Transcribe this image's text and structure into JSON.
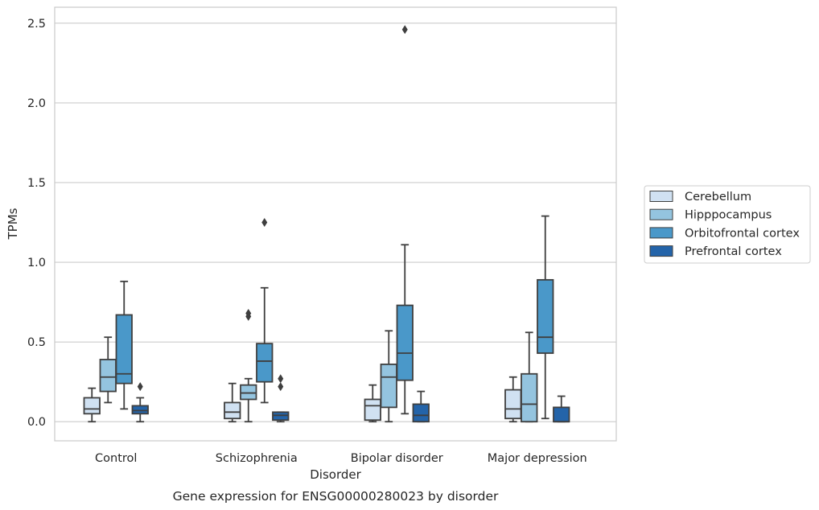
{
  "chart_data": {
    "type": "box",
    "caption": "Gene expression for ENSG00000280023 by disorder",
    "xlabel": "Disorder",
    "ylabel": "TPMs",
    "ylim": [
      -0.12,
      2.6
    ],
    "yticks": [
      "0.0",
      "0.5",
      "1.0",
      "1.5",
      "2.0",
      "2.5"
    ],
    "ytick_values": [
      0,
      0.5,
      1.0,
      1.5,
      2.0,
      2.5
    ],
    "grid": "horizontal",
    "legend_position": "right",
    "categories": [
      "Control",
      "Schizophrenia",
      "Bipolar disorder",
      "Major depression"
    ],
    "series": [
      {
        "name": "Cerebellum",
        "color": "#d0e1f2",
        "boxes": [
          {
            "whislo": 0.0,
            "q1": 0.05,
            "med": 0.08,
            "q3": 0.15,
            "whishi": 0.21,
            "fliers": []
          },
          {
            "whislo": 0.0,
            "q1": 0.02,
            "med": 0.06,
            "q3": 0.12,
            "whishi": 0.24,
            "fliers": []
          },
          {
            "whislo": 0.0,
            "q1": 0.01,
            "med": 0.1,
            "q3": 0.14,
            "whishi": 0.23,
            "fliers": []
          },
          {
            "whislo": 0.0,
            "q1": 0.02,
            "med": 0.08,
            "q3": 0.2,
            "whishi": 0.28,
            "fliers": []
          }
        ]
      },
      {
        "name": "Hipppocampus",
        "color": "#94c4df",
        "boxes": [
          {
            "whislo": 0.12,
            "q1": 0.19,
            "med": 0.28,
            "q3": 0.39,
            "whishi": 0.53,
            "fliers": []
          },
          {
            "whislo": 0.0,
            "q1": 0.14,
            "med": 0.18,
            "q3": 0.23,
            "whishi": 0.27,
            "fliers": [
              0.66,
              0.68
            ]
          },
          {
            "whislo": 0.0,
            "q1": 0.09,
            "med": 0.28,
            "q3": 0.36,
            "whishi": 0.57,
            "fliers": []
          },
          {
            "whislo": 0.0,
            "q1": 0.0,
            "med": 0.11,
            "q3": 0.3,
            "whishi": 0.56,
            "fliers": []
          }
        ]
      },
      {
        "name": "Orbitofrontal cortex",
        "color": "#4a98c9",
        "boxes": [
          {
            "whislo": 0.08,
            "q1": 0.24,
            "med": 0.3,
            "q3": 0.67,
            "whishi": 0.88,
            "fliers": []
          },
          {
            "whislo": 0.12,
            "q1": 0.25,
            "med": 0.38,
            "q3": 0.49,
            "whishi": 0.84,
            "fliers": [
              1.25
            ]
          },
          {
            "whislo": 0.05,
            "q1": 0.26,
            "med": 0.43,
            "q3": 0.73,
            "whishi": 1.11,
            "fliers": [
              2.46
            ]
          },
          {
            "whislo": 0.02,
            "q1": 0.43,
            "med": 0.53,
            "q3": 0.89,
            "whishi": 1.29,
            "fliers": []
          }
        ]
      },
      {
        "name": "Prefrontal cortex",
        "color": "#2464a9",
        "boxes": [
          {
            "whislo": 0.0,
            "q1": 0.05,
            "med": 0.07,
            "q3": 0.1,
            "whishi": 0.15,
            "fliers": [
              0.22
            ]
          },
          {
            "whislo": 0.0,
            "q1": 0.01,
            "med": 0.04,
            "q3": 0.06,
            "whishi": 0.06,
            "fliers": [
              0.22,
              0.27
            ]
          },
          {
            "whislo": 0.0,
            "q1": 0.0,
            "med": 0.04,
            "q3": 0.11,
            "whishi": 0.19,
            "fliers": []
          },
          {
            "whislo": 0.0,
            "q1": 0.0,
            "med": 0.0,
            "q3": 0.09,
            "whishi": 0.16,
            "fliers": []
          }
        ]
      }
    ]
  }
}
